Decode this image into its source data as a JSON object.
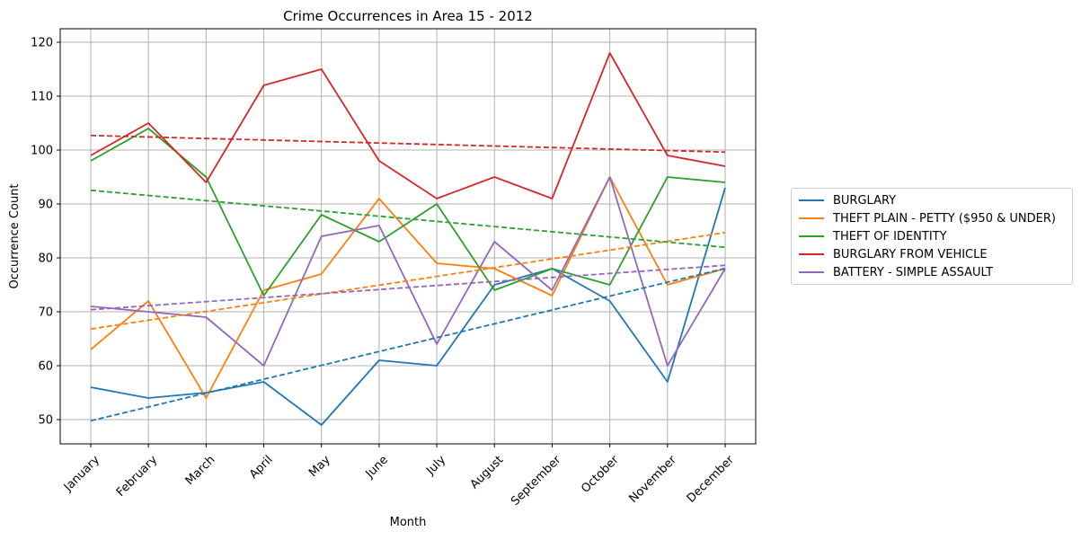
{
  "chart_data": {
    "type": "line",
    "title": "Crime Occurrences in Area 15 - 2012",
    "xlabel": "Month",
    "ylabel": "Occurrence Count",
    "categories": [
      "January",
      "February",
      "March",
      "April",
      "May",
      "June",
      "July",
      "August",
      "September",
      "October",
      "November",
      "December"
    ],
    "ylim": [
      45.5,
      122.5
    ],
    "yticks": [
      "50",
      "60",
      "70",
      "80",
      "90",
      "100",
      "110",
      "120"
    ],
    "grid": true,
    "legend_position": "outside-right",
    "trendlines": "dashed linear fit per series",
    "series": [
      {
        "name": "BURGLARY",
        "color": "#1f77b4",
        "values": [
          56,
          54,
          55,
          57,
          49,
          61,
          60,
          75,
          78,
          72,
          57,
          93
        ]
      },
      {
        "name": "THEFT PLAIN - PETTY ($950 & UNDER)",
        "color": "#ff7f0e",
        "values": [
          63,
          72,
          54,
          74,
          77,
          91,
          79,
          78,
          73,
          95,
          75,
          78
        ]
      },
      {
        "name": "THEFT OF IDENTITY",
        "color": "#2ca02c",
        "values": [
          98,
          104,
          95,
          73,
          88,
          83,
          90,
          74,
          78,
          75,
          95,
          94
        ]
      },
      {
        "name": "BURGLARY FROM VEHICLE",
        "color": "#d62728",
        "values": [
          99,
          105,
          94,
          112,
          115,
          98,
          91,
          95,
          91,
          118,
          99,
          97
        ]
      },
      {
        "name": "BATTERY - SIMPLE ASSAULT",
        "color": "#9467bd",
        "values": [
          71,
          70,
          69,
          60,
          84,
          86,
          64,
          83,
          74,
          95,
          60,
          78
        ]
      }
    ]
  }
}
